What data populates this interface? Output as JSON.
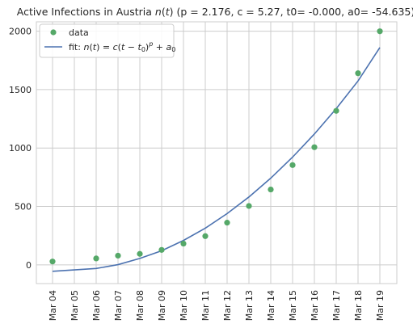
{
  "chart_data": {
    "type": "scatter",
    "title": "Active Infections in Austria n(t) (p = 2.176, c = 5.27, t0= -0.000, a0= -54.635)",
    "title_parts": {
      "prefix": "Active Infections in Austria ",
      "var": "n",
      "paren_open": "(",
      "arg": "t",
      "paren_close": ")",
      "suffix": " (p = 2.176, c = 5.27, t0= -0.000, a0= -54.635)"
    },
    "xlabel": "",
    "ylabel": "",
    "categories": [
      "Mar 04",
      "Mar 05",
      "Mar 06",
      "Mar 07",
      "Mar 08",
      "Mar 09",
      "Mar 10",
      "Mar 11",
      "Mar 12",
      "Mar 13",
      "Mar 14",
      "Mar 15",
      "Mar 16",
      "Mar 17",
      "Mar 18",
      "Mar 19"
    ],
    "ylim": [
      -160,
      2080
    ],
    "yticks": [
      0,
      500,
      1000,
      1500,
      2000
    ],
    "ytick_labels": [
      "0",
      "500",
      "1000",
      "1500",
      "2000"
    ],
    "grid": true,
    "legend_position": "top-left",
    "series": [
      {
        "name": "data",
        "kind": "scatter",
        "color": "#55a868",
        "x": [
          0,
          2,
          3,
          4,
          5,
          6,
          7,
          8,
          9,
          10,
          11,
          12,
          13,
          14,
          15
        ],
        "values": [
          29,
          55,
          79,
          94,
          128,
          182,
          246,
          361,
          504,
          645,
          854,
          1007,
          1318,
          1640,
          1999
        ]
      },
      {
        "name": "fit: n(t) = c(t − t0)^p + a0",
        "kind": "line",
        "color": "#4c72b0",
        "x": [
          0,
          2,
          3,
          4,
          5,
          6,
          7,
          8,
          9,
          10,
          11,
          12,
          13,
          14,
          15
        ],
        "values": [
          -55,
          -31,
          2,
          55,
          121,
          209,
          314,
          439,
          581,
          742,
          922,
          1120,
          1337,
          1574,
          1860
        ]
      }
    ],
    "legend": {
      "data_label": "data",
      "fit_prefix": "fit: ",
      "fit_formula": {
        "n": "n",
        "t": "t",
        "eq": " = ",
        "c": "c",
        "open": "(",
        "t2": "t",
        "minus": " − ",
        "t0": "t",
        "t0_sub": "0",
        "close": ")",
        "p": "p",
        "plus": " + ",
        "a": "a",
        "a_sub": "0"
      }
    }
  }
}
